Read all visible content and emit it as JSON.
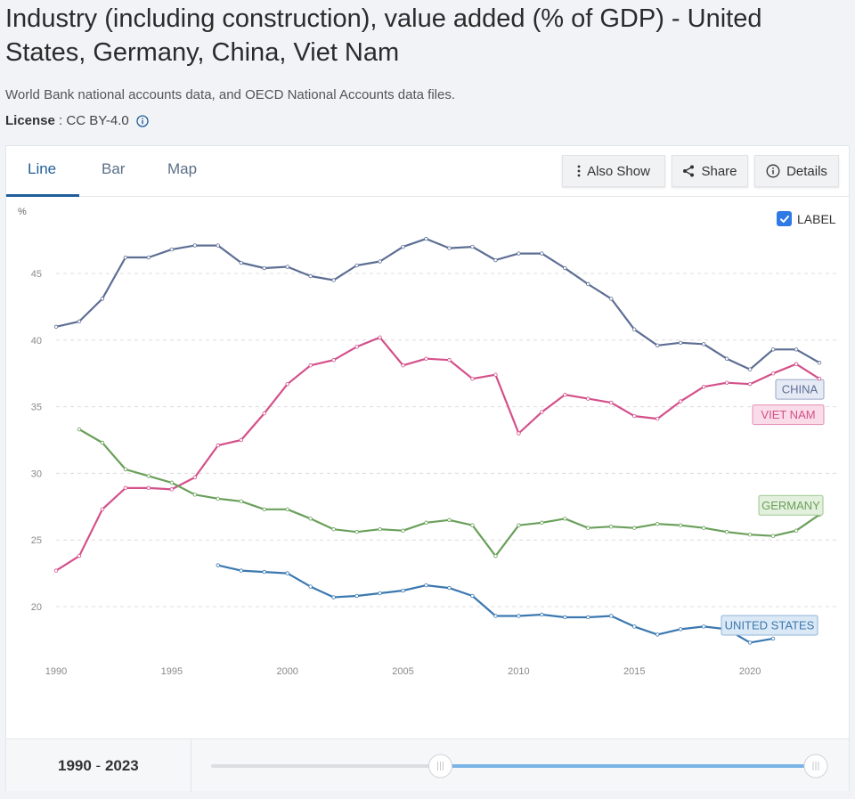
{
  "header": {
    "title": "Industry (including construction), value added (% of GDP) - United States, Germany, China, Viet Nam",
    "source": "World Bank national accounts data, and OECD National Accounts data files.",
    "license_label": "License",
    "license_sep": " : ",
    "license_value": "CC BY-4.0"
  },
  "tabs": [
    {
      "label": "Line",
      "active": true
    },
    {
      "label": "Bar",
      "active": false
    },
    {
      "label": "Map",
      "active": false
    }
  ],
  "toolbar": {
    "also_show": "Also Show",
    "share": "Share",
    "details": "Details"
  },
  "label_toggle": {
    "label": "LABEL",
    "checked": true
  },
  "footer": {
    "range_start": "1990",
    "range_sep": " - ",
    "range_end": "2023"
  },
  "range_slider": {
    "min_year": 1970,
    "max_year": 2023,
    "start_year": 1990,
    "end_year": 2023
  },
  "colors": {
    "china": "#5d6e94",
    "viet_nam": "#d4508a",
    "germany": "#6aa05b",
    "united_states": "#3b78b0",
    "accent": "#1f5e9a",
    "slider_active": "#7ab4e6"
  },
  "chart_data": {
    "type": "line",
    "title": "Industry (including construction), value added (% of GDP)",
    "ylabel": "%",
    "xlabel": "",
    "xlim": [
      1990,
      2023
    ],
    "ylim": [
      16,
      50
    ],
    "x_ticks": [
      1990,
      1995,
      2000,
      2005,
      2010,
      2015,
      2020
    ],
    "y_ticks": [
      20,
      25,
      30,
      35,
      40,
      45
    ],
    "grid": true,
    "series": [
      {
        "name": "CHINA",
        "key": "china",
        "x": [
          1990,
          1991,
          1992,
          1993,
          1994,
          1995,
          1996,
          1997,
          1998,
          1999,
          2000,
          2001,
          2002,
          2003,
          2004,
          2005,
          2006,
          2007,
          2008,
          2009,
          2010,
          2011,
          2012,
          2013,
          2014,
          2015,
          2016,
          2017,
          2018,
          2019,
          2020,
          2021,
          2022,
          2023
        ],
        "values": [
          41.0,
          41.4,
          43.1,
          46.2,
          46.2,
          46.8,
          47.1,
          47.1,
          45.8,
          45.4,
          45.5,
          44.8,
          44.5,
          45.6,
          45.9,
          47.0,
          47.6,
          46.9,
          47.0,
          46.0,
          46.5,
          46.5,
          45.4,
          44.2,
          43.1,
          40.8,
          39.6,
          39.8,
          39.7,
          38.6,
          37.8,
          39.3,
          39.3,
          38.3
        ]
      },
      {
        "name": "VIET NAM",
        "key": "viet_nam",
        "x": [
          1990,
          1991,
          1992,
          1993,
          1994,
          1995,
          1996,
          1997,
          1998,
          1999,
          2000,
          2001,
          2002,
          2003,
          2004,
          2005,
          2006,
          2007,
          2008,
          2009,
          2010,
          2011,
          2012,
          2013,
          2014,
          2015,
          2016,
          2017,
          2018,
          2019,
          2020,
          2021,
          2022,
          2023
        ],
        "values": [
          22.7,
          23.8,
          27.3,
          28.9,
          28.9,
          28.8,
          29.7,
          32.1,
          32.5,
          34.5,
          36.7,
          38.1,
          38.5,
          39.5,
          40.2,
          38.1,
          38.6,
          38.5,
          37.1,
          37.4,
          33.0,
          34.6,
          35.9,
          35.6,
          35.3,
          34.3,
          34.1,
          35.4,
          36.5,
          36.8,
          36.7,
          37.5,
          38.2,
          37.1
        ]
      },
      {
        "name": "GERMANY",
        "key": "germany",
        "x": [
          1991,
          1992,
          1993,
          1994,
          1995,
          1996,
          1997,
          1998,
          1999,
          2000,
          2001,
          2002,
          2003,
          2004,
          2005,
          2006,
          2007,
          2008,
          2009,
          2010,
          2011,
          2012,
          2013,
          2014,
          2015,
          2016,
          2017,
          2018,
          2019,
          2020,
          2021,
          2022,
          2023
        ],
        "values": [
          33.3,
          32.3,
          30.3,
          29.8,
          29.3,
          28.4,
          28.1,
          27.9,
          27.3,
          27.3,
          26.6,
          25.8,
          25.6,
          25.8,
          25.7,
          26.3,
          26.5,
          26.1,
          23.8,
          26.1,
          26.3,
          26.6,
          25.9,
          26.0,
          25.9,
          26.2,
          26.1,
          25.9,
          25.6,
          25.4,
          25.3,
          25.7,
          26.9
        ]
      },
      {
        "name": "UNITED STATES",
        "key": "united_states",
        "x": [
          1997,
          1998,
          1999,
          2000,
          2001,
          2002,
          2003,
          2004,
          2005,
          2006,
          2007,
          2008,
          2009,
          2010,
          2011,
          2012,
          2013,
          2014,
          2015,
          2016,
          2017,
          2018,
          2019,
          2020,
          2021
        ],
        "values": [
          23.1,
          22.7,
          22.6,
          22.5,
          21.5,
          20.7,
          20.8,
          21.0,
          21.2,
          21.6,
          21.4,
          20.8,
          19.3,
          19.3,
          19.4,
          19.2,
          19.2,
          19.3,
          18.5,
          17.9,
          18.3,
          18.5,
          18.3,
          17.3,
          17.6
        ]
      }
    ]
  }
}
